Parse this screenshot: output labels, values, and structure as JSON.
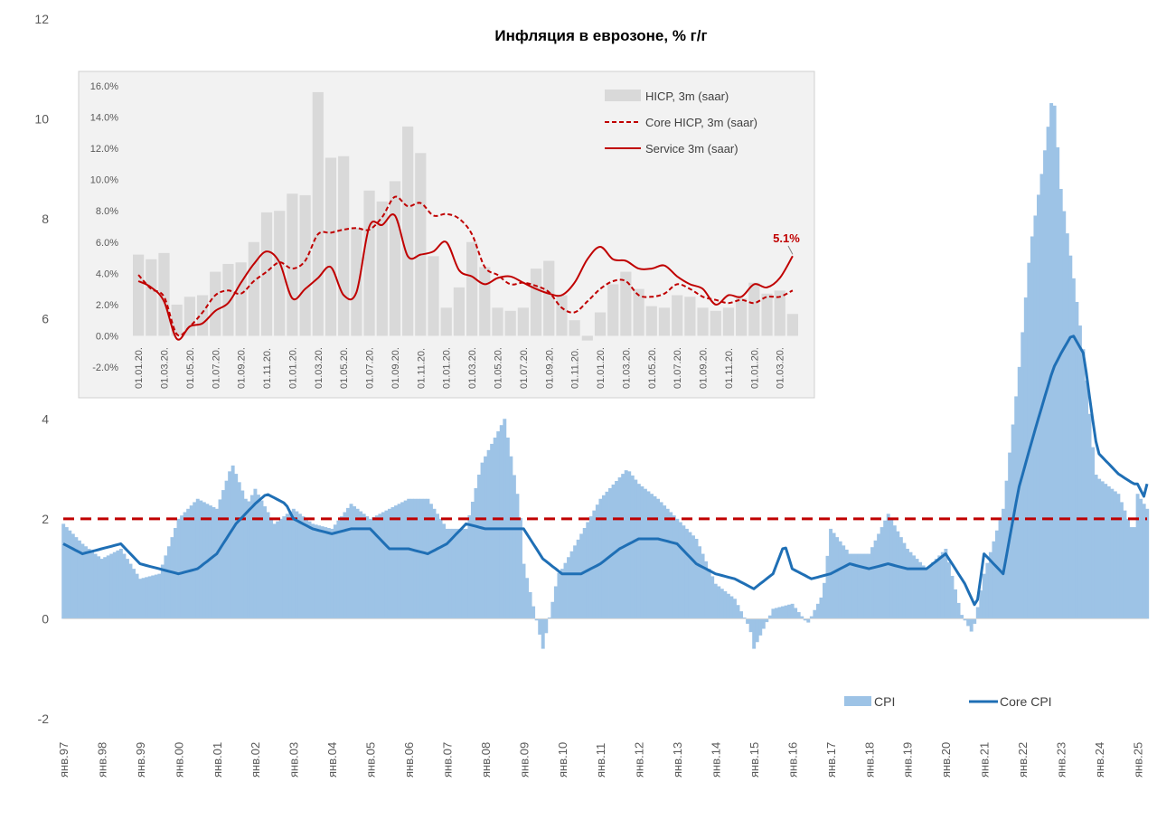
{
  "chart_data": [
    {
      "type": "bar+line",
      "title": "Инфляция в еврозоне, % г/г",
      "ylim": [
        -2,
        12
      ],
      "yticks": [
        "-2",
        "0",
        "2",
        "4",
        "6",
        "8",
        "10",
        "12"
      ],
      "xticks": [
        "янв.97",
        "янв.98",
        "янв.99",
        "янв.00",
        "янв.01",
        "янв.02",
        "янв.03",
        "янв.04",
        "янв.05",
        "янв.06",
        "янв.07",
        "янв.08",
        "янв.09",
        "янв.10",
        "янв.11",
        "янв.12",
        "янв.13",
        "янв.14",
        "янв.15",
        "янв.16",
        "янв.17",
        "янв.18",
        "янв.19",
        "янв.20",
        "янв.21",
        "янв.22",
        "янв.23",
        "янв.24",
        "янв.25"
      ],
      "reference_line": 2,
      "grid": false,
      "legend": "bottom-right",
      "series": [
        {
          "name": "CPI",
          "kind": "bar",
          "color": "#9dc3e6",
          "points": [
            [
              1997.0,
              1.9
            ],
            [
              1997.5,
              1.5
            ],
            [
              1998.0,
              1.2
            ],
            [
              1998.5,
              1.4
            ],
            [
              1999.0,
              0.8
            ],
            [
              1999.5,
              0.9
            ],
            [
              2000.0,
              2.0
            ],
            [
              2000.5,
              2.4
            ],
            [
              2001.0,
              2.2
            ],
            [
              2001.4,
              3.1
            ],
            [
              2001.8,
              2.3
            ],
            [
              2002.0,
              2.6
            ],
            [
              2002.5,
              1.9
            ],
            [
              2003.0,
              2.2
            ],
            [
              2003.5,
              1.9
            ],
            [
              2004.0,
              1.8
            ],
            [
              2004.5,
              2.3
            ],
            [
              2005.0,
              2.0
            ],
            [
              2005.5,
              2.2
            ],
            [
              2006.0,
              2.4
            ],
            [
              2006.5,
              2.4
            ],
            [
              2007.0,
              1.8
            ],
            [
              2007.5,
              1.8
            ],
            [
              2007.9,
              3.1
            ],
            [
              2008.5,
              4.0
            ],
            [
              2008.9,
              2.2
            ],
            [
              2009.0,
              1.1
            ],
            [
              2009.5,
              -0.6
            ],
            [
              2009.9,
              0.9
            ],
            [
              2010.0,
              1.0
            ],
            [
              2010.5,
              1.7
            ],
            [
              2011.0,
              2.4
            ],
            [
              2011.7,
              3.0
            ],
            [
              2012.0,
              2.7
            ],
            [
              2012.5,
              2.4
            ],
            [
              2013.0,
              2.0
            ],
            [
              2013.5,
              1.6
            ],
            [
              2014.0,
              0.7
            ],
            [
              2014.5,
              0.4
            ],
            [
              2014.9,
              -0.2
            ],
            [
              2015.0,
              -0.6
            ],
            [
              2015.5,
              0.2
            ],
            [
              2016.0,
              0.3
            ],
            [
              2016.4,
              -0.1
            ],
            [
              2016.8,
              0.5
            ],
            [
              2017.0,
              1.8
            ],
            [
              2017.5,
              1.3
            ],
            [
              2018.0,
              1.3
            ],
            [
              2018.5,
              2.1
            ],
            [
              2019.0,
              1.4
            ],
            [
              2019.5,
              1.0
            ],
            [
              2020.0,
              1.4
            ],
            [
              2020.4,
              0.1
            ],
            [
              2020.7,
              -0.3
            ],
            [
              2021.0,
              0.9
            ],
            [
              2021.5,
              2.2
            ],
            [
              2021.9,
              4.9
            ],
            [
              2022.2,
              7.4
            ],
            [
              2022.5,
              8.9
            ],
            [
              2022.8,
              10.6
            ],
            [
              2023.0,
              8.6
            ],
            [
              2023.3,
              7.0
            ],
            [
              2023.6,
              5.3
            ],
            [
              2023.9,
              2.9
            ],
            [
              2024.0,
              2.8
            ],
            [
              2024.5,
              2.5
            ],
            [
              2024.9,
              1.7
            ],
            [
              2025.0,
              2.5
            ],
            [
              2025.25,
              2.2
            ]
          ]
        },
        {
          "name": "Core CPI",
          "kind": "line",
          "color": "#1f6fb5",
          "points": [
            [
              1997.0,
              1.5
            ],
            [
              1997.5,
              1.3
            ],
            [
              1998.0,
              1.4
            ],
            [
              1998.5,
              1.5
            ],
            [
              1999.0,
              1.1
            ],
            [
              1999.5,
              1.0
            ],
            [
              2000.0,
              0.9
            ],
            [
              2000.5,
              1.0
            ],
            [
              2001.0,
              1.3
            ],
            [
              2001.5,
              1.9
            ],
            [
              2002.0,
              2.3
            ],
            [
              2002.3,
              2.5
            ],
            [
              2002.8,
              2.3
            ],
            [
              2003.0,
              2.0
            ],
            [
              2003.5,
              1.8
            ],
            [
              2004.0,
              1.7
            ],
            [
              2004.5,
              1.8
            ],
            [
              2005.0,
              1.8
            ],
            [
              2005.5,
              1.4
            ],
            [
              2006.0,
              1.4
            ],
            [
              2006.5,
              1.3
            ],
            [
              2007.0,
              1.5
            ],
            [
              2007.5,
              1.9
            ],
            [
              2008.0,
              1.8
            ],
            [
              2008.5,
              1.8
            ],
            [
              2009.0,
              1.8
            ],
            [
              2009.5,
              1.2
            ],
            [
              2010.0,
              0.9
            ],
            [
              2010.5,
              0.9
            ],
            [
              2011.0,
              1.1
            ],
            [
              2011.5,
              1.4
            ],
            [
              2012.0,
              1.6
            ],
            [
              2012.5,
              1.6
            ],
            [
              2013.0,
              1.5
            ],
            [
              2013.5,
              1.1
            ],
            [
              2014.0,
              0.9
            ],
            [
              2014.5,
              0.8
            ],
            [
              2015.0,
              0.6
            ],
            [
              2015.5,
              0.9
            ],
            [
              2015.8,
              1.5
            ],
            [
              2016.0,
              1.0
            ],
            [
              2016.5,
              0.8
            ],
            [
              2017.0,
              0.9
            ],
            [
              2017.5,
              1.1
            ],
            [
              2018.0,
              1.0
            ],
            [
              2018.5,
              1.1
            ],
            [
              2019.0,
              1.0
            ],
            [
              2019.5,
              1.0
            ],
            [
              2020.0,
              1.3
            ],
            [
              2020.5,
              0.7
            ],
            [
              2020.8,
              0.2
            ],
            [
              2021.0,
              1.3
            ],
            [
              2021.5,
              0.9
            ],
            [
              2021.9,
              2.6
            ],
            [
              2022.3,
              3.7
            ],
            [
              2022.8,
              5.0
            ],
            [
              2023.0,
              5.3
            ],
            [
              2023.3,
              5.7
            ],
            [
              2023.6,
              5.3
            ],
            [
              2023.9,
              3.6
            ],
            [
              2024.0,
              3.3
            ],
            [
              2024.5,
              2.9
            ],
            [
              2024.9,
              2.7
            ],
            [
              2025.0,
              2.7
            ],
            [
              2025.2,
              2.4
            ],
            [
              2025.25,
              2.7
            ]
          ]
        }
      ]
    },
    {
      "type": "bar+line",
      "ylim": [
        -2,
        16
      ],
      "yticks": [
        "-2.0%",
        "0.0%",
        "2.0%",
        "4.0%",
        "6.0%",
        "8.0%",
        "10.0%",
        "12.0%",
        "14.0%",
        "16.0%"
      ],
      "xticks": [
        "01.01.20.",
        "01.03.20.",
        "01.05.20.",
        "01.07.20.",
        "01.09.20.",
        "01.11.20.",
        "01.01.20.",
        "01.03.20.",
        "01.05.20.",
        "01.07.20.",
        "01.09.20.",
        "01.11.20.",
        "01.01.20.",
        "01.03.20.",
        "01.05.20.",
        "01.07.20.",
        "01.09.20.",
        "01.11.20.",
        "01.01.20.",
        "01.03.20.",
        "01.05.20.",
        "01.07.20.",
        "01.09.20.",
        "01.11.20.",
        "01.01.20.",
        "01.03.20."
      ],
      "legend": "top-right",
      "annotation": "5.1%",
      "series": [
        {
          "name": "HICP, 3m (saar)",
          "kind": "bar",
          "color": "#d9d9d9",
          "values": [
            5.2,
            4.9,
            5.3,
            2.0,
            2.5,
            2.6,
            4.1,
            4.6,
            4.7,
            6.0,
            7.9,
            8.0,
            9.1,
            9.0,
            15.6,
            11.4,
            11.5,
            6.9,
            9.3,
            8.6,
            9.9,
            13.4,
            11.7,
            5.1,
            1.8,
            3.1,
            6.0,
            4.4,
            1.8,
            1.6,
            1.8,
            4.3,
            4.8,
            2.6,
            1.0,
            -0.3,
            1.5,
            3.3,
            4.1,
            3.0,
            1.9,
            1.8,
            2.6,
            2.5,
            1.8,
            1.6,
            1.8,
            2.4,
            3.4,
            2.7,
            2.9,
            1.4
          ]
        },
        {
          "name": "Core HICP, 3m (saar)",
          "kind": "line",
          "color": "#c00000",
          "values": [
            3.9,
            3.0,
            2.5,
            0.1,
            0.6,
            1.5,
            2.6,
            2.9,
            2.7,
            3.5,
            4.1,
            4.7,
            4.3,
            4.8,
            6.5,
            6.6,
            6.8,
            6.9,
            6.8,
            7.6,
            8.9,
            8.3,
            8.5,
            7.7,
            7.8,
            7.5,
            6.5,
            4.4,
            3.9,
            3.3,
            3.4,
            3.2,
            2.8,
            1.8,
            1.5,
            2.2,
            3.0,
            3.5,
            3.5,
            2.6,
            2.5,
            2.7,
            3.3,
            3.0,
            2.5,
            2.3,
            2.1,
            2.3,
            2.1,
            2.5,
            2.5,
            2.9
          ]
        },
        {
          "name": "Service  3m (saar)",
          "kind": "line",
          "color": "#c00000",
          "values": [
            3.5,
            3.1,
            2.2,
            -0.2,
            0.6,
            0.8,
            1.6,
            2.1,
            3.4,
            4.6,
            5.4,
            4.7,
            2.4,
            3.0,
            3.7,
            4.4,
            2.6,
            2.8,
            7.0,
            7.1,
            7.7,
            5.1,
            5.2,
            5.4,
            6.0,
            4.2,
            3.8,
            3.3,
            3.7,
            3.8,
            3.4,
            3.0,
            2.7,
            2.6,
            3.4,
            4.9,
            5.7,
            4.9,
            4.8,
            4.3,
            4.3,
            4.5,
            3.8,
            3.3,
            3.0,
            2.0,
            2.6,
            2.5,
            3.3,
            3.1,
            3.7,
            5.1
          ]
        }
      ]
    }
  ]
}
